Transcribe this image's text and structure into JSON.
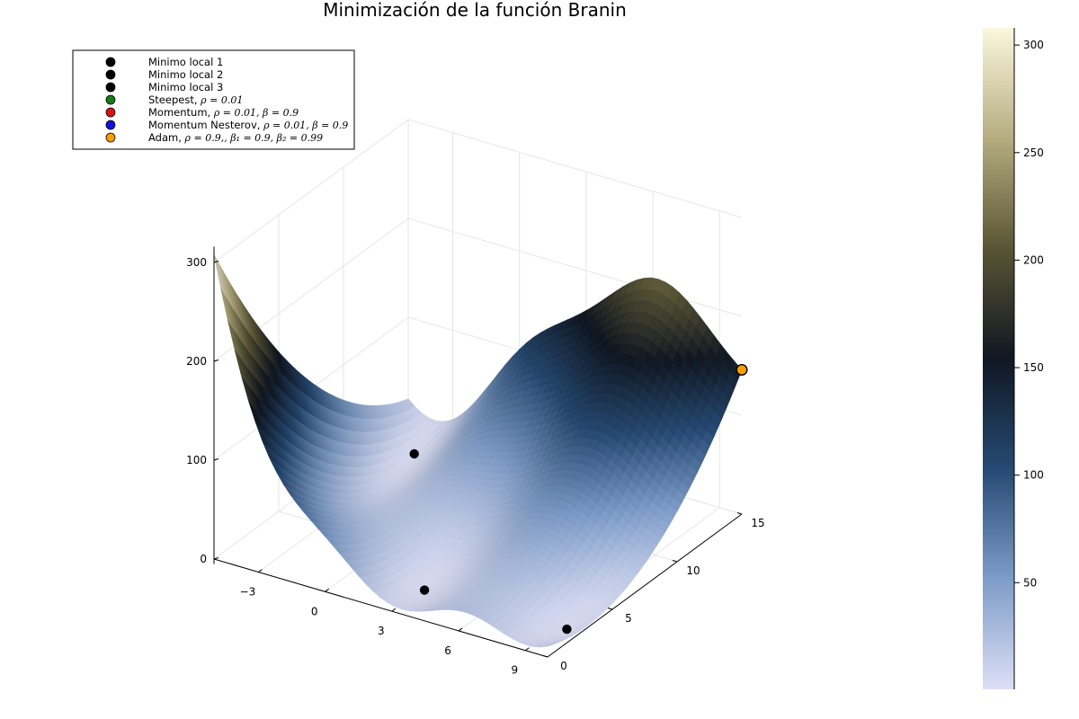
{
  "chart_data": {
    "type": "surface3d",
    "title": "Minimización de la función Branin",
    "function": "Branin",
    "xlim": [
      -5,
      10
    ],
    "ylim": [
      0,
      15
    ],
    "zlim": [
      0,
      310
    ],
    "x_ticks": [
      "−3",
      "0",
      "3",
      "6",
      "9"
    ],
    "y_ticks": [
      "0",
      "5",
      "10",
      "15"
    ],
    "z_ticks": [
      "0",
      "100",
      "200",
      "300"
    ],
    "colorbar": {
      "range": [
        0.4,
        308
      ],
      "ticks": [
        "50",
        "100",
        "150",
        "200",
        "250",
        "300"
      ],
      "colormap": "cream-olive-black-blue",
      "stops": [
        "#dcdff5",
        "#7e9cc8",
        "#264a73",
        "#101722",
        "#5a5535",
        "#b5ad80",
        "#fbf7de"
      ]
    },
    "legend": {
      "position": "top-left",
      "entries": [
        {
          "label": "Minimo local 1",
          "math": "",
          "color": "#000000"
        },
        {
          "label": "Minimo local 2",
          "math": "",
          "color": "#000000"
        },
        {
          "label": "Minimo local 3",
          "math": "",
          "color": "#000000"
        },
        {
          "label": "Steepest, ",
          "math": "ρ = 0.01",
          "color": "#1a7a1a"
        },
        {
          "label": "Momentum, ",
          "math": "ρ = 0.01, β = 0.9",
          "color": "#dd1111"
        },
        {
          "label": "Momentum Nesterov, ",
          "math": "ρ = 0.01, β = 0.9",
          "color": "#1111dd"
        },
        {
          "label": "Adam, ",
          "math": "ρ = 0.9,, β₁ = 0.9, β₂ = 0.99",
          "color": "#f5a000"
        }
      ]
    },
    "series": [
      {
        "name": "Minimo local 1",
        "x": [
          -3.14159
        ],
        "y": [
          12.275
        ],
        "z": [
          0.398
        ],
        "color": "#000000"
      },
      {
        "name": "Minimo local 2",
        "x": [
          3.14159
        ],
        "y": [
          2.275
        ],
        "z": [
          0.398
        ],
        "color": "#000000"
      },
      {
        "name": "Minimo local 3",
        "x": [
          9.42478
        ],
        "y": [
          2.475
        ],
        "z": [
          0.398
        ],
        "color": "#000000"
      },
      {
        "name": "Adam, ρ = 0.9,, β₁ = 0.9, β₂ = 0.99",
        "x": [
          10
        ],
        "y": [
          15
        ],
        "z": [
          145.9
        ],
        "color": "#f5a000"
      }
    ]
  }
}
